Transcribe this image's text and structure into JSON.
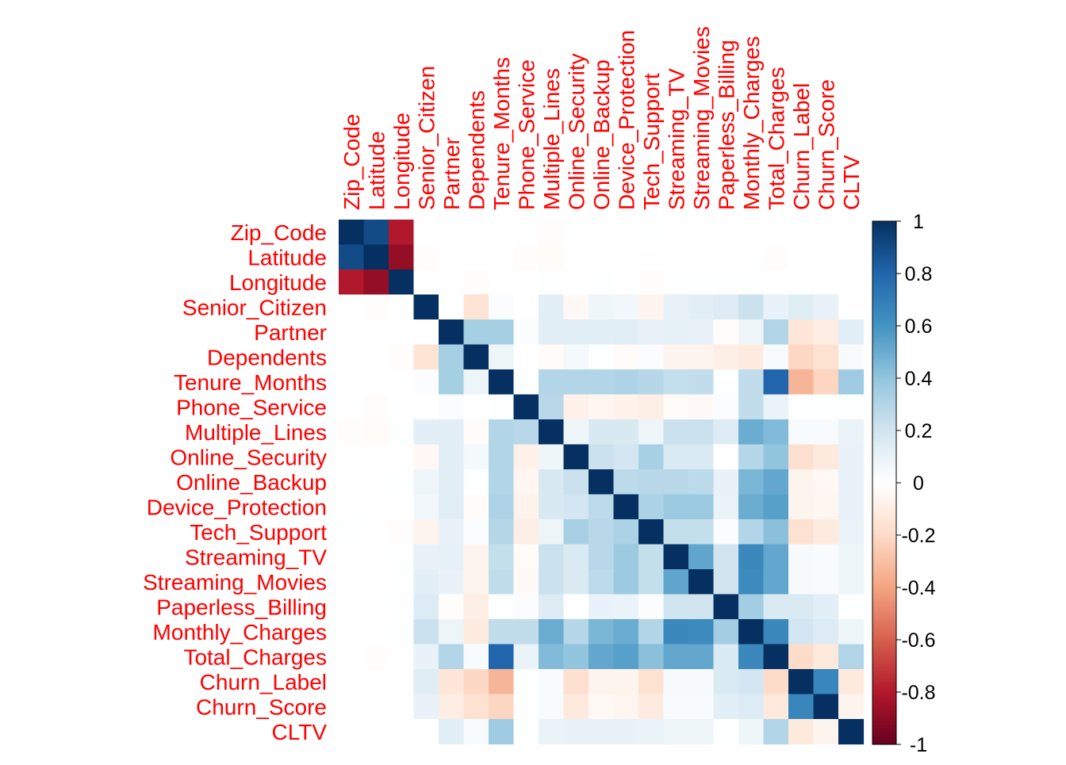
{
  "chart_data": {
    "type": "heatmap",
    "title": "",
    "variables": [
      "Zip_Code",
      "Latitude",
      "Longitude",
      "Senior_Citizen",
      "Partner",
      "Dependents",
      "Tenure_Months",
      "Phone_Service",
      "Multiple_Lines",
      "Online_Security",
      "Online_Backup",
      "Device_Protection",
      "Tech_Support",
      "Streaming_TV",
      "Streaming_Movies",
      "Paperless_Billing",
      "Monthly_Charges",
      "Total_Charges",
      "Churn_Label",
      "Churn_Score",
      "CLTV"
    ],
    "matrix": [
      [
        1.0,
        0.9,
        -0.8,
        0.0,
        0.0,
        0.0,
        0.0,
        0.0,
        -0.01,
        0.0,
        0.0,
        0.0,
        0.01,
        0.0,
        0.0,
        0.0,
        0.0,
        0.0,
        0.0,
        0.0,
        0.0
      ],
      [
        0.9,
        1.0,
        -0.88,
        -0.01,
        0.0,
        0.0,
        0.0,
        -0.01,
        -0.02,
        0.0,
        0.0,
        0.0,
        0.0,
        0.0,
        0.0,
        0.0,
        0.0,
        -0.01,
        0.0,
        0.0,
        0.0
      ],
      [
        -0.8,
        -0.88,
        1.0,
        0.0,
        0.0,
        -0.01,
        0.0,
        0.0,
        0.01,
        0.0,
        0.01,
        0.0,
        -0.01,
        0.01,
        0.01,
        0.01,
        0.01,
        0.0,
        0.0,
        0.0,
        0.0
      ],
      [
        0.0,
        -0.01,
        0.0,
        1.0,
        0.0,
        -0.15,
        0.02,
        0.0,
        0.12,
        -0.04,
        0.07,
        0.06,
        -0.06,
        0.1,
        0.12,
        0.15,
        0.22,
        0.1,
        0.14,
        0.1,
        0.0
      ],
      [
        0.0,
        0.0,
        0.0,
        0.0,
        1.0,
        0.34,
        0.34,
        0.02,
        0.12,
        0.12,
        0.12,
        0.13,
        0.1,
        0.11,
        0.1,
        -0.01,
        0.08,
        0.3,
        -0.14,
        -0.1,
        0.12
      ],
      [
        0.0,
        0.0,
        -0.01,
        -0.15,
        0.34,
        1.0,
        0.08,
        0.0,
        -0.02,
        0.05,
        0.01,
        -0.02,
        0.02,
        -0.06,
        -0.06,
        -0.09,
        -0.11,
        0.03,
        -0.21,
        -0.16,
        0.03
      ],
      [
        0.0,
        0.0,
        0.0,
        0.02,
        0.34,
        0.08,
        1.0,
        0.01,
        0.3,
        0.3,
        0.3,
        0.31,
        0.29,
        0.24,
        0.25,
        0.01,
        0.25,
        0.8,
        -0.34,
        -0.22,
        0.36
      ],
      [
        0.0,
        -0.01,
        0.0,
        0.0,
        0.02,
        0.0,
        0.01,
        1.0,
        0.28,
        -0.08,
        -0.05,
        -0.07,
        -0.09,
        -0.02,
        -0.03,
        0.02,
        0.25,
        0.09,
        0.01,
        0.01,
        0.01
      ],
      [
        -0.01,
        -0.02,
        0.01,
        0.12,
        0.12,
        -0.02,
        0.3,
        0.28,
        1.0,
        0.07,
        0.17,
        0.17,
        0.08,
        0.22,
        0.22,
        0.15,
        0.5,
        0.44,
        0.03,
        0.03,
        0.09
      ],
      [
        0.0,
        0.0,
        0.0,
        -0.04,
        0.12,
        0.05,
        0.3,
        -0.08,
        0.07,
        1.0,
        0.22,
        0.19,
        0.33,
        0.16,
        0.16,
        0.0,
        0.29,
        0.4,
        -0.17,
        -0.12,
        0.1
      ],
      [
        0.0,
        0.0,
        0.01,
        0.07,
        0.12,
        0.01,
        0.3,
        -0.05,
        0.17,
        0.22,
        1.0,
        0.27,
        0.28,
        0.28,
        0.27,
        0.1,
        0.46,
        0.52,
        -0.06,
        -0.04,
        0.1
      ],
      [
        0.0,
        0.0,
        0.0,
        0.06,
        0.13,
        -0.02,
        0.31,
        -0.07,
        0.17,
        0.19,
        0.27,
        1.0,
        0.32,
        0.37,
        0.37,
        0.09,
        0.5,
        0.55,
        -0.06,
        -0.05,
        0.1
      ],
      [
        0.01,
        0.0,
        -0.01,
        -0.06,
        0.1,
        0.02,
        0.29,
        -0.09,
        0.08,
        0.33,
        0.28,
        0.32,
        1.0,
        0.24,
        0.24,
        0.02,
        0.3,
        0.42,
        -0.16,
        -0.11,
        0.09
      ],
      [
        0.0,
        0.0,
        0.01,
        0.1,
        0.11,
        -0.06,
        0.24,
        -0.02,
        0.22,
        0.16,
        0.28,
        0.37,
        0.24,
        1.0,
        0.53,
        0.2,
        0.65,
        0.52,
        0.04,
        0.03,
        0.07
      ],
      [
        0.0,
        0.0,
        0.01,
        0.12,
        0.1,
        -0.06,
        0.25,
        -0.03,
        0.22,
        0.16,
        0.27,
        0.37,
        0.24,
        0.53,
        1.0,
        0.2,
        0.64,
        0.52,
        0.04,
        0.03,
        0.07
      ],
      [
        0.0,
        0.0,
        0.01,
        0.15,
        -0.01,
        -0.09,
        0.01,
        0.02,
        0.15,
        0.0,
        0.1,
        0.09,
        0.02,
        0.2,
        0.2,
        1.0,
        0.35,
        0.16,
        0.16,
        0.12,
        0.01
      ],
      [
        0.0,
        0.0,
        0.01,
        0.22,
        0.08,
        -0.11,
        0.25,
        0.25,
        0.5,
        0.29,
        0.46,
        0.5,
        0.3,
        0.65,
        0.64,
        0.35,
        1.0,
        0.65,
        0.19,
        0.15,
        0.07
      ],
      [
        0.0,
        -0.01,
        0.0,
        0.1,
        0.3,
        0.03,
        0.8,
        0.09,
        0.44,
        0.4,
        0.52,
        0.55,
        0.42,
        0.52,
        0.52,
        0.16,
        0.65,
        1.0,
        -0.19,
        -0.12,
        0.3
      ],
      [
        0.0,
        0.0,
        0.0,
        0.14,
        -0.14,
        -0.21,
        -0.34,
        0.01,
        0.03,
        -0.17,
        -0.06,
        -0.06,
        -0.16,
        0.04,
        0.04,
        0.16,
        0.19,
        -0.19,
        1.0,
        0.66,
        -0.12
      ],
      [
        0.0,
        0.0,
        0.0,
        0.1,
        -0.1,
        -0.16,
        -0.22,
        0.01,
        0.03,
        -0.12,
        -0.04,
        -0.05,
        -0.11,
        0.03,
        0.03,
        0.12,
        0.15,
        -0.12,
        0.66,
        1.0,
        -0.06
      ],
      [
        0.0,
        0.0,
        0.0,
        0.0,
        0.12,
        0.03,
        0.36,
        0.01,
        0.09,
        0.1,
        0.1,
        0.1,
        0.09,
        0.07,
        0.07,
        0.01,
        0.07,
        0.3,
        -0.12,
        -0.06,
        1.0
      ]
    ],
    "color_scale": {
      "range": [
        -1,
        1
      ],
      "ticks": [
        "1",
        "0.8",
        "0.6",
        "0.4",
        "0.2",
        "0",
        "-0.2",
        "-0.4",
        "-0.6",
        "-0.8",
        "-1"
      ],
      "stops": [
        {
          "value": -1.0,
          "color": "#67001F"
        },
        {
          "value": -0.8,
          "color": "#B2182B"
        },
        {
          "value": -0.6,
          "color": "#D6604D"
        },
        {
          "value": -0.4,
          "color": "#F4A582"
        },
        {
          "value": -0.2,
          "color": "#FDDBC7"
        },
        {
          "value": 0.0,
          "color": "#FFFFFF"
        },
        {
          "value": 0.2,
          "color": "#D1E5F0"
        },
        {
          "value": 0.4,
          "color": "#92C5DE"
        },
        {
          "value": 0.6,
          "color": "#4393C3"
        },
        {
          "value": 0.8,
          "color": "#2166AC"
        },
        {
          "value": 1.0,
          "color": "#053061"
        }
      ]
    },
    "label_color": "#FF0000",
    "legend_position": "right",
    "grid": false
  }
}
